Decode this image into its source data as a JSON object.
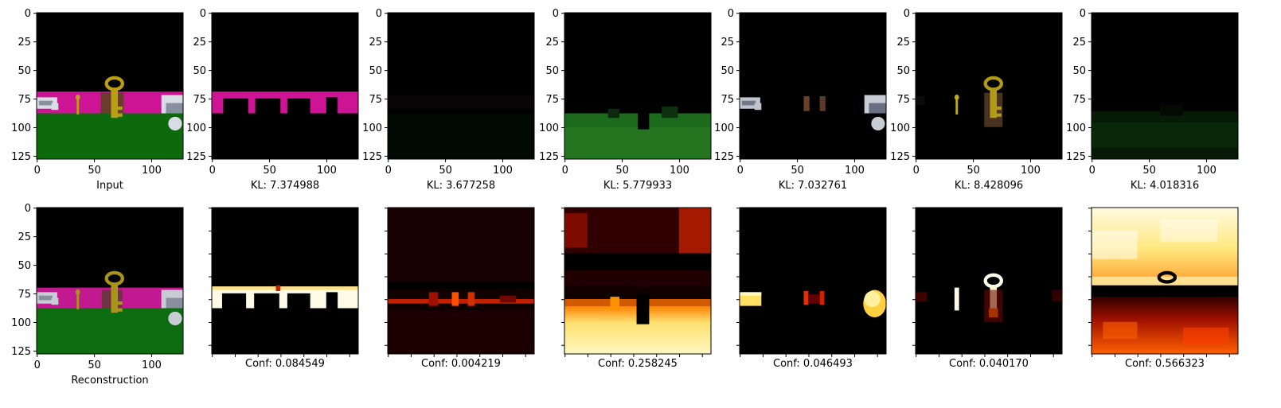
{
  "chart_data": {
    "type": "image-grid",
    "image_size": 128,
    "axis": {
      "xticks": [
        "0",
        "50",
        "100"
      ],
      "yticks": [
        "0",
        "25",
        "50",
        "75",
        "100",
        "125"
      ],
      "xtick_values": [
        0,
        50,
        100
      ],
      "ytick_values": [
        0,
        25,
        50,
        75,
        100,
        125
      ],
      "minor_ticks": [
        0,
        20,
        40,
        60,
        80,
        100,
        120
      ]
    },
    "rows": [
      {
        "panels": [
          {
            "caption": "Input",
            "kind": "scene"
          },
          {
            "caption": "KL: 7.374988",
            "kind": "wall"
          },
          {
            "caption": "KL: 3.677258",
            "kind": "dark"
          },
          {
            "caption": "KL: 5.779933",
            "kind": "floor"
          },
          {
            "caption": "KL: 7.032761",
            "kind": "cars"
          },
          {
            "caption": "KL: 8.428096",
            "kind": "key"
          },
          {
            "caption": "KL: 4.018316",
            "kind": "faint-floor"
          }
        ]
      },
      {
        "panels": [
          {
            "caption": "Reconstruction",
            "kind": "recon"
          },
          {
            "caption": "Conf: 0.084549",
            "kind": "heat-wall"
          },
          {
            "caption": "Conf: 0.004219",
            "kind": "heat-dark"
          },
          {
            "caption": "Conf: 0.258245",
            "kind": "heat-floor"
          },
          {
            "caption": "Conf: 0.046493",
            "kind": "heat-cars"
          },
          {
            "caption": "Conf: 0.040170",
            "kind": "heat-key"
          },
          {
            "caption": "Conf: 0.566323",
            "kind": "heat-sky"
          }
        ]
      }
    ],
    "colors": {
      "wall": "#cc1494",
      "floor": "#0c6a0c",
      "key": "#b8a010",
      "car": "#d8dce4",
      "heat_low": "#000000",
      "heat_mid": "#b01000",
      "heat_high": "#ffffe0"
    }
  }
}
